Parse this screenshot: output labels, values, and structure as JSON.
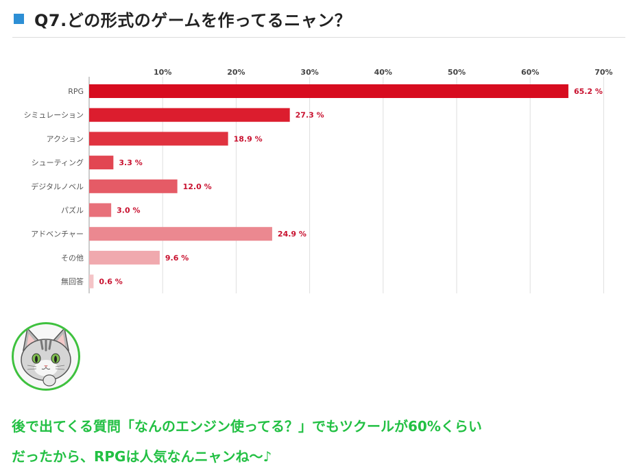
{
  "header": {
    "title": "Q7.どの形式のゲームを作ってるニャン？"
  },
  "colors": {
    "accent_square": "#2d8fd5",
    "comment_text": "#22c043",
    "value_label": "#c8102e"
  },
  "chart_data": {
    "type": "bar",
    "orientation": "horizontal",
    "categories": [
      "RPG",
      "シミュレーション",
      "アクション",
      "シューティング",
      "デジタルノベル",
      "パズル",
      "アドベンチャー",
      "その他",
      "無回答"
    ],
    "values": [
      65.2,
      27.3,
      18.9,
      3.3,
      12.0,
      3.0,
      24.9,
      9.6,
      0.6
    ],
    "value_labels": [
      "65.2 %",
      "27.3 %",
      "18.9 %",
      "3.3 %",
      "12.0 %",
      "3.0 %",
      "24.9 %",
      "9.6 %",
      "0.6 %"
    ],
    "bar_colors": [
      "#d70c1f",
      "#dc1d2e",
      "#e0323f",
      "#e24652",
      "#e55b66",
      "#e8707a",
      "#eb8890",
      "#f0a9ae",
      "#f4c4c7"
    ],
    "ticks": [
      10,
      20,
      30,
      40,
      50,
      60,
      70
    ],
    "tick_labels": [
      "10%",
      "20%",
      "30%",
      "40%",
      "50%",
      "60%",
      "70%"
    ],
    "xlim": [
      0,
      70
    ],
    "axis_position": "top",
    "grid": true,
    "title": "",
    "xlabel": "",
    "ylabel": ""
  },
  "avatar": {
    "icon": "cat-face-icon"
  },
  "comment": {
    "line1": "後で出てくる質問「なんのエンジン使ってる？」でもツクールが60%くらい",
    "line2": "だったから、RPGは人気なんニャンね～♪"
  }
}
